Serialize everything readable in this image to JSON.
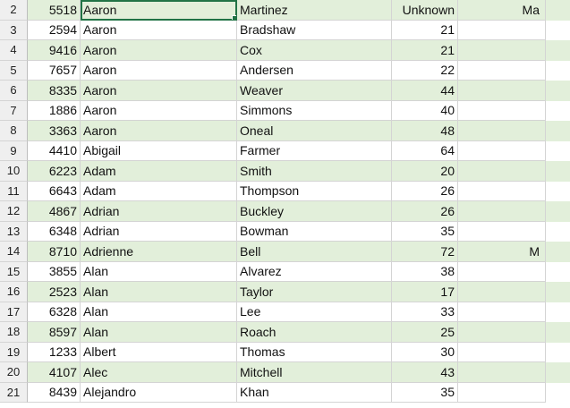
{
  "rows": [
    {
      "row": "2",
      "id": "5518",
      "first": "Aaron",
      "last": "Martinez",
      "age": "Unknown",
      "gender": "Ma"
    },
    {
      "row": "3",
      "id": "2594",
      "first": "Aaron",
      "last": "Bradshaw",
      "age": "21",
      "gender": ""
    },
    {
      "row": "4",
      "id": "9416",
      "first": "Aaron",
      "last": "Cox",
      "age": "21",
      "gender": ""
    },
    {
      "row": "5",
      "id": "7657",
      "first": "Aaron",
      "last": "Andersen",
      "age": "22",
      "gender": ""
    },
    {
      "row": "6",
      "id": "8335",
      "first": "Aaron",
      "last": "Weaver",
      "age": "44",
      "gender": ""
    },
    {
      "row": "7",
      "id": "1886",
      "first": "Aaron",
      "last": "Simmons",
      "age": "40",
      "gender": ""
    },
    {
      "row": "8",
      "id": "3363",
      "first": "Aaron",
      "last": "Oneal",
      "age": "48",
      "gender": ""
    },
    {
      "row": "9",
      "id": "4410",
      "first": "Abigail",
      "last": "Farmer",
      "age": "64",
      "gender": ""
    },
    {
      "row": "10",
      "id": "6223",
      "first": "Adam",
      "last": "Smith",
      "age": "20",
      "gender": ""
    },
    {
      "row": "11",
      "id": "6643",
      "first": "Adam",
      "last": "Thompson",
      "age": "26",
      "gender": ""
    },
    {
      "row": "12",
      "id": "4867",
      "first": "Adrian",
      "last": "Buckley",
      "age": "26",
      "gender": ""
    },
    {
      "row": "13",
      "id": "6348",
      "first": "Adrian",
      "last": "Bowman",
      "age": "35",
      "gender": ""
    },
    {
      "row": "14",
      "id": "8710",
      "first": "Adrienne",
      "last": "Bell",
      "age": "72",
      "gender": "M"
    },
    {
      "row": "15",
      "id": "3855",
      "first": "Alan",
      "last": "Alvarez",
      "age": "38",
      "gender": ""
    },
    {
      "row": "16",
      "id": "2523",
      "first": "Alan",
      "last": "Taylor",
      "age": "17",
      "gender": ""
    },
    {
      "row": "17",
      "id": "6328",
      "first": "Alan",
      "last": "Lee",
      "age": "33",
      "gender": ""
    },
    {
      "row": "18",
      "id": "8597",
      "first": "Alan",
      "last": "Roach",
      "age": "25",
      "gender": ""
    },
    {
      "row": "19",
      "id": "1233",
      "first": "Albert",
      "last": "Thomas",
      "age": "30",
      "gender": ""
    },
    {
      "row": "20",
      "id": "4107",
      "first": "Alec",
      "last": "Mitchell",
      "age": "43",
      "gender": ""
    },
    {
      "row": "21",
      "id": "8439",
      "first": "Alejandro",
      "last": "Khan",
      "age": "35",
      "gender": ""
    }
  ],
  "colors": {
    "band": "#e2efda",
    "selection": "#217346"
  }
}
